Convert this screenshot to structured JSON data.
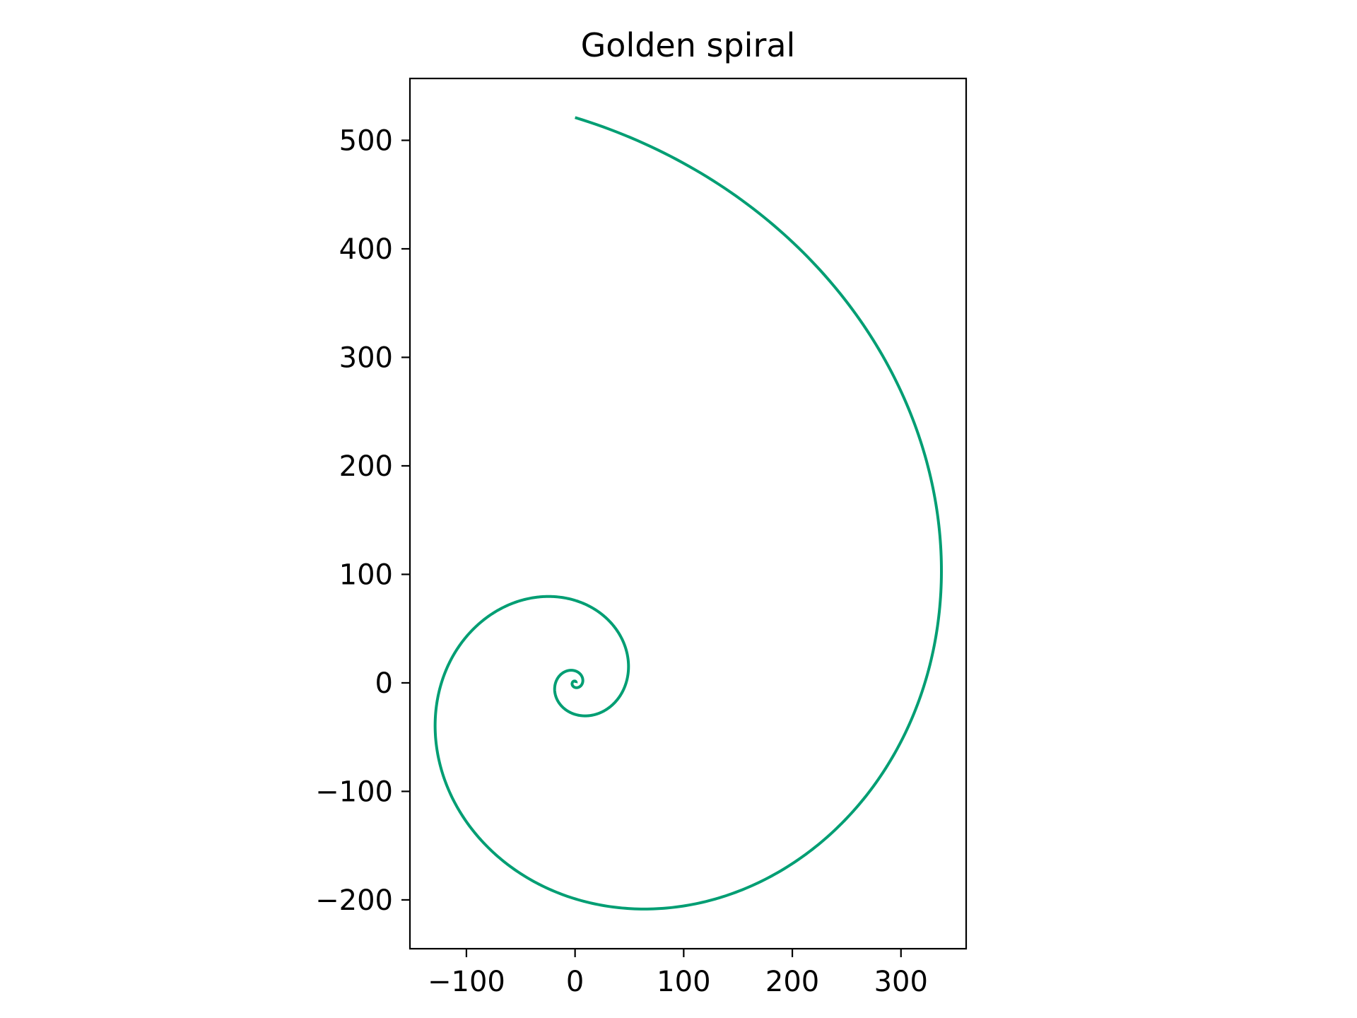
{
  "chart_data": {
    "type": "line",
    "title": "Golden spiral",
    "xlabel": "",
    "ylabel": "",
    "xlim": [
      -152,
      360
    ],
    "ylim": [
      -245,
      557
    ],
    "xticks": [
      -100,
      0,
      100,
      200,
      300
    ],
    "yticks": [
      -200,
      -100,
      0,
      100,
      200,
      300,
      400,
      500
    ],
    "xtick_labels": [
      "−100",
      "0",
      "100",
      "200",
      "300"
    ],
    "ytick_labels": [
      "−200",
      "−100",
      "0",
      "100",
      "200",
      "300",
      "400",
      "500"
    ],
    "grid": false,
    "legend": "none",
    "series": [
      {
        "line_color": "#009e73",
        "curve": "logarithmic spiral r = a*exp(b*theta)",
        "a": 1.0,
        "b": 0.30635,
        "theta_start_turns": 0,
        "theta_end_turns": 3.25,
        "x_end": 0,
        "y_end": 522
      }
    ]
  }
}
